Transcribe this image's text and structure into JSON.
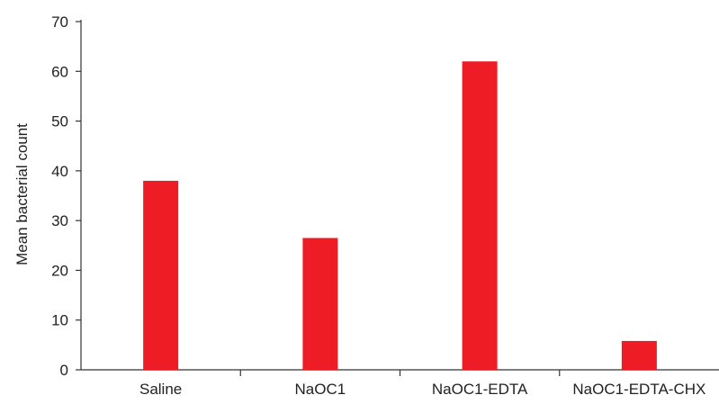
{
  "chart_data": {
    "type": "bar",
    "title": "",
    "xlabel": "",
    "ylabel": "Mean bacterial count",
    "categories": [
      "Saline",
      "NaOC1",
      "NaOC1-EDTA",
      "NaOC1-EDTA-CHX"
    ],
    "values": [
      38,
      26.5,
      62,
      5.8
    ],
    "ylim": [
      0,
      70
    ],
    "yticks": [
      "0",
      "10",
      "20",
      "30",
      "40",
      "50",
      "60",
      "70"
    ],
    "grid": false,
    "legend": "none",
    "bar_color": "#ee1c25",
    "axis_color": "#333333"
  }
}
